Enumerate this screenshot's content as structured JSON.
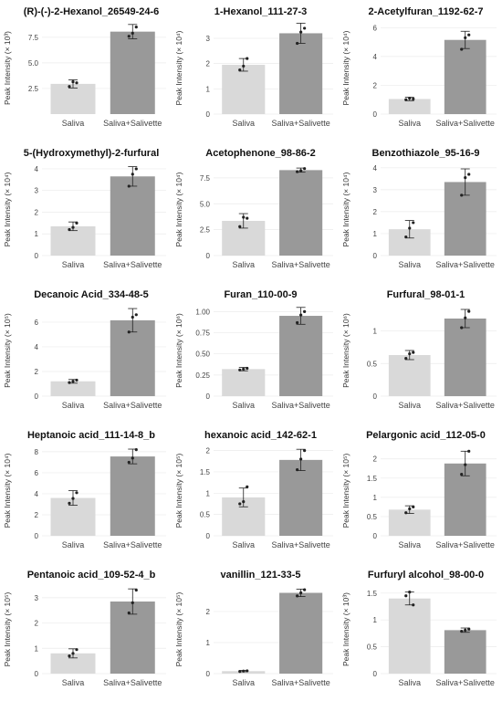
{
  "chart_data": [
    {
      "type": "bar",
      "title": "(R)-(-)-2-Hexanol_26549-24-6",
      "ylabel": "Peak Intensity (× 10³)",
      "categories": [
        "Saliva",
        "Saliva+Salivette"
      ],
      "values": [
        2.95,
        8.05
      ],
      "errors": [
        0.4,
        0.7
      ],
      "points": [
        [
          2.7,
          3.05,
          3.15
        ],
        [
          7.6,
          8.5,
          7.9
        ]
      ],
      "yticks": [
        "2.5",
        "5.0",
        "7.5"
      ],
      "ytick_values": [
        2.5,
        5.0,
        7.5
      ],
      "ylim": [
        0,
        9.0
      ],
      "colors": [
        "#d9d9d9",
        "#999999"
      ]
    },
    {
      "type": "bar",
      "title": "1-Hexanol_111-27-3",
      "ylabel": "Peak Intensity (× 10⁴)",
      "categories": [
        "Saliva",
        "Saliva+Salivette"
      ],
      "values": [
        1.95,
        3.2
      ],
      "errors": [
        0.25,
        0.4
      ],
      "points": [
        [
          1.75,
          2.2,
          1.9
        ],
        [
          2.8,
          3.4,
          3.25
        ]
      ],
      "yticks": [
        "0",
        "1",
        "2",
        "3"
      ],
      "ytick_values": [
        0,
        1,
        2,
        3
      ],
      "ylim": [
        0,
        3.65
      ],
      "colors": [
        "#d9d9d9",
        "#999999"
      ]
    },
    {
      "type": "bar",
      "title": "2-Acetylfuran_1192-62-7",
      "ylabel": "Peak Intensity (× 10⁴)",
      "categories": [
        "Saliva",
        "Saliva+Salivette"
      ],
      "values": [
        1.05,
        5.15
      ],
      "errors": [
        0.12,
        0.6
      ],
      "points": [
        [
          1.0,
          1.05,
          1.1
        ],
        [
          4.5,
          5.5,
          5.3
        ]
      ],
      "yticks": [
        "0",
        "2",
        "4",
        "6"
      ],
      "ytick_values": [
        0,
        2,
        4,
        6
      ],
      "ylim": [
        0,
        6.4
      ],
      "colors": [
        "#d9d9d9",
        "#999999"
      ]
    },
    {
      "type": "bar",
      "title": "5-(Hydroxymethyl)-2-furfural",
      "ylabel": "Peak Intensity (× 10⁴)",
      "categories": [
        "Saliva",
        "Saliva+Salivette"
      ],
      "values": [
        1.35,
        3.65
      ],
      "errors": [
        0.2,
        0.45
      ],
      "points": [
        [
          1.2,
          1.5,
          1.3
        ],
        [
          3.2,
          4.0,
          3.75
        ]
      ],
      "yticks": [
        "0",
        "1",
        "2",
        "3",
        "4"
      ],
      "ytick_values": [
        0,
        1,
        2,
        3,
        4
      ],
      "ylim": [
        0,
        4.25
      ],
      "colors": [
        "#d9d9d9",
        "#999999"
      ]
    },
    {
      "type": "bar",
      "title": "Acetophenone_98-86-2",
      "ylabel": "Peak Intensity (× 10⁴)",
      "categories": [
        "Saliva",
        "Saliva+Salivette"
      ],
      "values": [
        3.35,
        8.25
      ],
      "errors": [
        0.7,
        0.2
      ],
      "points": [
        [
          2.8,
          3.6,
          3.7
        ],
        [
          8.1,
          8.4,
          8.2
        ]
      ],
      "yticks": [
        "0",
        "2.5",
        "5.0",
        "7.5"
      ],
      "ytick_values": [
        0,
        2.5,
        5.0,
        7.5
      ],
      "ylim": [
        0,
        8.9
      ],
      "colors": [
        "#d9d9d9",
        "#999999"
      ]
    },
    {
      "type": "bar",
      "title": "Benzothiazole_95-16-9",
      "ylabel": "Peak Intensity (× 10⁴)",
      "categories": [
        "Saliva",
        "Saliva+Salivette"
      ],
      "values": [
        1.2,
        3.35
      ],
      "errors": [
        0.4,
        0.6
      ],
      "points": [
        [
          0.85,
          1.5,
          1.25
        ],
        [
          2.75,
          3.7,
          3.55
        ]
      ],
      "yticks": [
        "0",
        "1",
        "2",
        "3",
        "4"
      ],
      "ytick_values": [
        0,
        1,
        2,
        3,
        4
      ],
      "ylim": [
        0,
        4.2
      ],
      "colors": [
        "#d9d9d9",
        "#999999"
      ]
    },
    {
      "type": "bar",
      "title": "Decanoic Acid_334-48-5",
      "ylabel": "Peak Intensity (× 10⁵)",
      "categories": [
        "Saliva",
        "Saliva+Salivette"
      ],
      "values": [
        1.2,
        6.15
      ],
      "errors": [
        0.15,
        0.95
      ],
      "points": [
        [
          1.1,
          1.3,
          1.2
        ],
        [
          5.2,
          6.6,
          6.4
        ]
      ],
      "yticks": [
        "0",
        "2",
        "4",
        "6"
      ],
      "ytick_values": [
        0,
        2,
        4,
        6
      ],
      "ylim": [
        0,
        7.4
      ],
      "colors": [
        "#d9d9d9",
        "#999999"
      ]
    },
    {
      "type": "bar",
      "title": "Furan_110-00-9",
      "ylabel": "Peak Intensity (× 10⁶)",
      "categories": [
        "Saliva",
        "Saliva+Salivette"
      ],
      "values": [
        0.32,
        0.95
      ],
      "errors": [
        0.02,
        0.1
      ],
      "points": [
        [
          0.31,
          0.33,
          0.32
        ],
        [
          0.87,
          1.0,
          0.96
        ]
      ],
      "yticks": [
        "0",
        "0.25",
        "0.50",
        "0.75",
        "1.00"
      ],
      "ytick_values": [
        0,
        0.25,
        0.5,
        0.75,
        1.0
      ],
      "ylim": [
        0,
        1.08
      ],
      "colors": [
        "#d9d9d9",
        "#999999"
      ]
    },
    {
      "type": "bar",
      "title": "Furfural_98-01-1",
      "ylabel": "Peak Intensity (× 10⁶)",
      "categories": [
        "Saliva",
        "Saliva+Salivette"
      ],
      "values": [
        0.63,
        1.19
      ],
      "errors": [
        0.07,
        0.14
      ],
      "points": [
        [
          0.58,
          0.67,
          0.65
        ],
        [
          1.05,
          1.3,
          1.2
        ]
      ],
      "yticks": [
        "0",
        "0.5",
        "1"
      ],
      "ytick_values": [
        0,
        0.5,
        1.0
      ],
      "ylim": [
        0,
        1.4
      ],
      "colors": [
        "#d9d9d9",
        "#999999"
      ]
    },
    {
      "type": "bar",
      "title": "Heptanoic acid_111-14-8_b",
      "ylabel": "Peak Intensity (× 10⁴)",
      "categories": [
        "Saliva",
        "Saliva+Salivette"
      ],
      "values": [
        3.6,
        7.55
      ],
      "errors": [
        0.7,
        0.7
      ],
      "points": [
        [
          3.1,
          4.1,
          3.55
        ],
        [
          7.0,
          8.2,
          7.4
        ]
      ],
      "yticks": [
        "0",
        "2",
        "4",
        "6",
        "8"
      ],
      "ytick_values": [
        0,
        2,
        4,
        6,
        8
      ],
      "ylim": [
        0,
        8.6
      ],
      "colors": [
        "#d9d9d9",
        "#999999"
      ]
    },
    {
      "type": "bar",
      "title": "hexanoic acid_142-62-1",
      "ylabel": "Peak Intensity (× 10⁵)",
      "categories": [
        "Saliva",
        "Saliva+Salivette"
      ],
      "values": [
        0.9,
        1.78
      ],
      "errors": [
        0.22,
        0.25
      ],
      "points": [
        [
          0.75,
          1.15,
          0.8
        ],
        [
          1.55,
          2.0,
          1.8
        ]
      ],
      "yticks": [
        "0",
        "0.5",
        "1",
        "1.5",
        "2"
      ],
      "ytick_values": [
        0,
        0.5,
        1.0,
        1.5,
        2.0
      ],
      "ylim": [
        0,
        2.12
      ],
      "colors": [
        "#d9d9d9",
        "#999999"
      ]
    },
    {
      "type": "bar",
      "title": "Pelargonic acid_112-05-0",
      "ylabel": "Peak Intensity (× 10⁵)",
      "categories": [
        "Saliva",
        "Saliva+Salivette"
      ],
      "values": [
        0.68,
        1.88
      ],
      "errors": [
        0.1,
        0.32
      ],
      "points": [
        [
          0.6,
          0.75,
          0.7
        ],
        [
          1.6,
          2.2,
          1.85
        ]
      ],
      "yticks": [
        "0",
        "0.5",
        "1",
        "1.5",
        "2"
      ],
      "ytick_values": [
        0,
        0.5,
        1.0,
        1.5,
        2.0
      ],
      "ylim": [
        0,
        2.35
      ],
      "colors": [
        "#d9d9d9",
        "#999999"
      ]
    },
    {
      "type": "bar",
      "title": "Pentanoic acid_109-52-4_b",
      "ylabel": "Peak Intensity (× 10⁵)",
      "categories": [
        "Saliva",
        "Saliva+Salivette"
      ],
      "values": [
        0.8,
        2.85
      ],
      "errors": [
        0.18,
        0.5
      ],
      "points": [
        [
          0.7,
          0.95,
          0.8
        ],
        [
          2.4,
          3.3,
          2.8
        ]
      ],
      "yticks": [
        "0",
        "1",
        "2",
        "3"
      ],
      "ytick_values": [
        0,
        1,
        2,
        3
      ],
      "ylim": [
        0,
        3.5
      ],
      "colors": [
        "#d9d9d9",
        "#999999"
      ]
    },
    {
      "type": "bar",
      "title": "vanillin_121-33-5",
      "ylabel": "Peak Intensity (× 10⁵)",
      "categories": [
        "Saliva",
        "Saliva+Salivette"
      ],
      "values": [
        0.08,
        2.6
      ],
      "errors": [
        0.02,
        0.12
      ],
      "points": [
        [
          0.07,
          0.09,
          0.08
        ],
        [
          2.5,
          2.7,
          2.6
        ]
      ],
      "yticks": [
        "0",
        "1",
        "2"
      ],
      "ytick_values": [
        0,
        1,
        2
      ],
      "ylim": [
        0,
        2.85
      ],
      "colors": [
        "#d9d9d9",
        "#999999"
      ]
    },
    {
      "type": "bar",
      "title": "Furfuryl alcohol_98-00-0",
      "ylabel": "Peak Intensity (× 10³)",
      "categories": [
        "Saliva",
        "Saliva+Salivette"
      ],
      "values": [
        1.4,
        0.81
      ],
      "errors": [
        0.12,
        0.04
      ],
      "points": [
        [
          1.45,
          1.28,
          1.52
        ],
        [
          0.79,
          0.83,
          0.81
        ]
      ],
      "yticks": [
        "0",
        "0.5",
        "1",
        "1.5"
      ],
      "ytick_values": [
        0,
        0.5,
        1.0,
        1.5
      ],
      "ylim": [
        0,
        1.65
      ],
      "colors": [
        "#d9d9d9",
        "#999999"
      ]
    }
  ]
}
